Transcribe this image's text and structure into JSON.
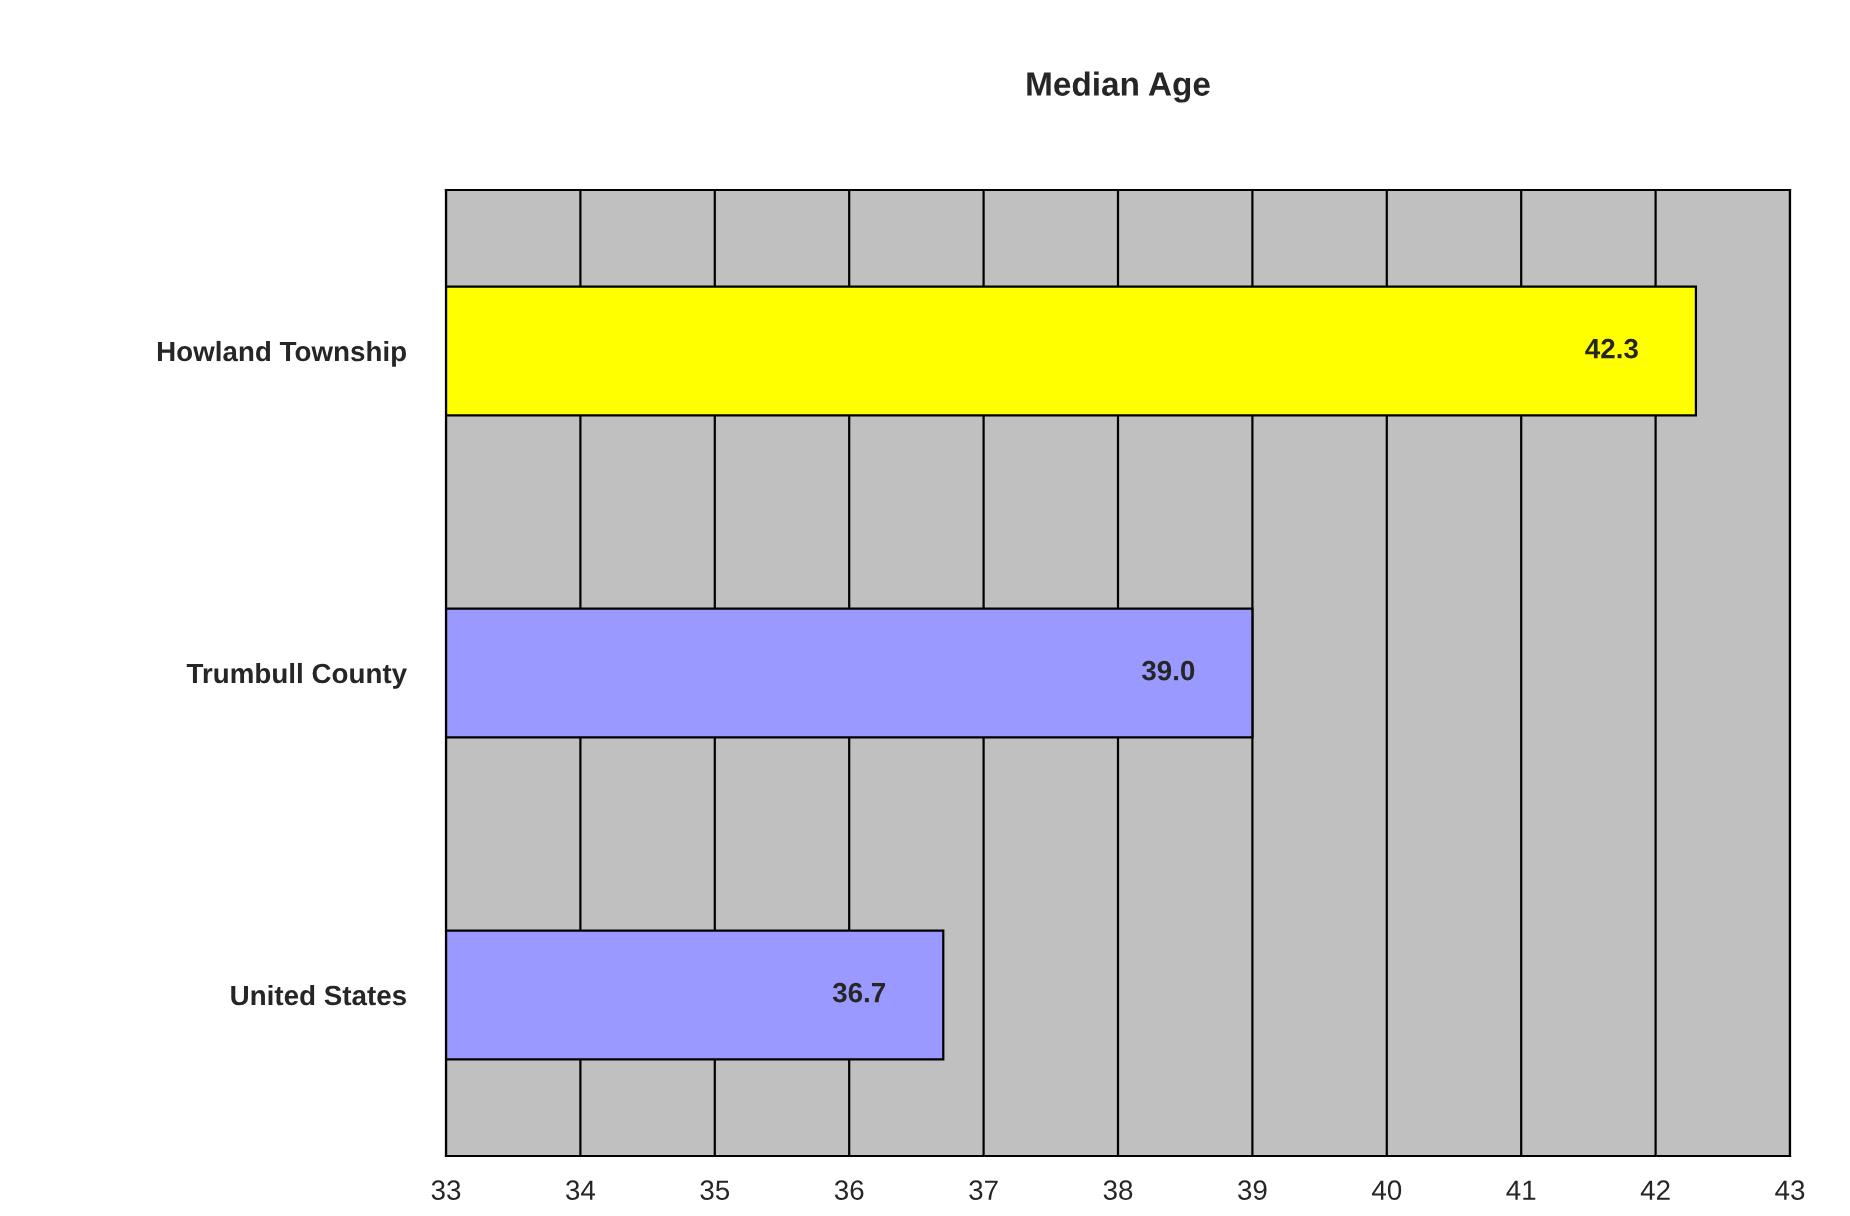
{
  "chart_data": {
    "type": "bar",
    "orientation": "horizontal",
    "title": "Median Age",
    "categories": [
      "Howland Township",
      "Trumbull County",
      "United States"
    ],
    "values": [
      42.3,
      39.0,
      36.7
    ],
    "value_labels": [
      "42.3",
      "39.0",
      "36.7"
    ],
    "colors": [
      "#ffff00",
      "#9999ff",
      "#9999ff"
    ],
    "xlim": [
      33,
      43
    ],
    "xticks": [
      33,
      34,
      35,
      36,
      37,
      38,
      39,
      40,
      41,
      42,
      43
    ],
    "grid": "x"
  }
}
